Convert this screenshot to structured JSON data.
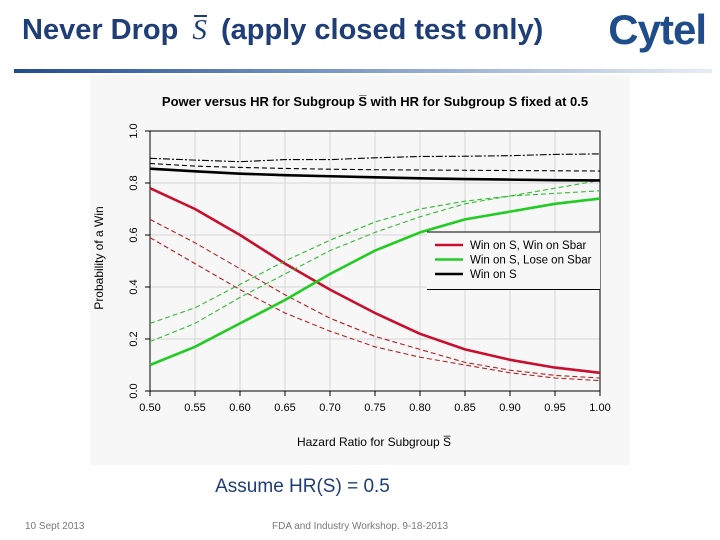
{
  "slide": {
    "title_before": "Never Drop",
    "title_symbol": "S",
    "title_after": "(apply closed test only)",
    "logo_text": "Cytel",
    "caption": "Assume HR(S) = 0.5",
    "footer_left": "10 Sept 2013",
    "footer_center": "FDA and Industry Workshop. 9-18-2013"
  },
  "colors": {
    "title": "#1f3e77",
    "logo": "#1f4d8c",
    "red_solid": "#c8102e",
    "red_dashed": "#b22222",
    "green_solid": "#22cc22",
    "green_dashed": "#33bb33",
    "black": "#000000"
  },
  "chart_data": {
    "type": "line",
    "title": "Power versus HR for Subgroup S̅ with HR for Subgroup S fixed at 0.5",
    "xlabel": "Hazard Ratio for Subgroup S̅",
    "ylabel": "Probability of a Win",
    "xlim": [
      0.5,
      1.0
    ],
    "ylim": [
      0.0,
      1.0
    ],
    "x_ticks": [
      "0.50",
      "0.55",
      "0.60",
      "0.65",
      "0.70",
      "0.75",
      "0.80",
      "0.85",
      "0.90",
      "0.95",
      "1.00"
    ],
    "y_ticks": [
      "0.0",
      "0.2",
      "0.4",
      "0.6",
      "0.8",
      "1.0"
    ],
    "grid": true,
    "legend_position": "right",
    "x": [
      0.5,
      0.55,
      0.6,
      0.65,
      0.7,
      0.75,
      0.8,
      0.85,
      0.9,
      0.95,
      1.0
    ],
    "series": [
      {
        "name": "Win on S, Win on Sbar",
        "color": "red",
        "style": "solid",
        "values": [
          0.78,
          0.7,
          0.6,
          0.49,
          0.39,
          0.3,
          0.22,
          0.16,
          0.12,
          0.09,
          0.07
        ]
      },
      {
        "name": "",
        "color": "red",
        "style": "dashed",
        "values": [
          0.66,
          0.57,
          0.47,
          0.37,
          0.28,
          0.21,
          0.16,
          0.11,
          0.08,
          0.06,
          0.05
        ]
      },
      {
        "name": "",
        "color": "red",
        "style": "dashed",
        "values": [
          0.59,
          0.49,
          0.39,
          0.3,
          0.23,
          0.17,
          0.13,
          0.1,
          0.07,
          0.05,
          0.04
        ]
      },
      {
        "name": "Win on S, Lose on Sbar",
        "color": "green",
        "style": "solid",
        "values": [
          0.1,
          0.17,
          0.26,
          0.35,
          0.45,
          0.54,
          0.61,
          0.66,
          0.69,
          0.72,
          0.74
        ]
      },
      {
        "name": "",
        "color": "green",
        "style": "dashed",
        "values": [
          0.26,
          0.32,
          0.41,
          0.5,
          0.58,
          0.65,
          0.7,
          0.73,
          0.75,
          0.76,
          0.77
        ]
      },
      {
        "name": "",
        "color": "green",
        "style": "dashed",
        "values": [
          0.19,
          0.26,
          0.36,
          0.45,
          0.54,
          0.61,
          0.67,
          0.72,
          0.75,
          0.78,
          0.81
        ]
      },
      {
        "name": "Win on S",
        "color": "black",
        "style": "solid",
        "values": [
          0.855,
          0.845,
          0.836,
          0.83,
          0.826,
          0.822,
          0.818,
          0.815,
          0.813,
          0.811,
          0.81
        ]
      },
      {
        "name": "",
        "color": "black",
        "style": "dashed",
        "values": [
          0.875,
          0.865,
          0.86,
          0.856,
          0.853,
          0.851,
          0.85,
          0.849,
          0.848,
          0.847,
          0.846
        ]
      },
      {
        "name": "",
        "color": "black",
        "style": "dashdot",
        "values": [
          0.895,
          0.888,
          0.882,
          0.89,
          0.89,
          0.897,
          0.902,
          0.903,
          0.905,
          0.91,
          0.912
        ]
      }
    ]
  }
}
